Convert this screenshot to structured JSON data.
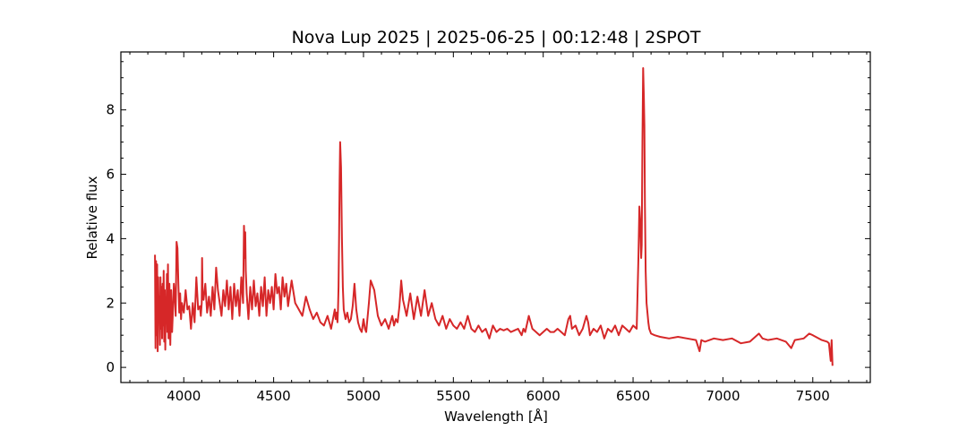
{
  "chart_data": {
    "type": "line",
    "title": "Nova Lup 2025 | 2025-06-25 | 00:12:48 | 2SPOT",
    "xlabel": "Wavelength [Å]",
    "ylabel": "Relative flux",
    "xlim": [
      3650,
      7820
    ],
    "ylim": [
      -0.47,
      9.8
    ],
    "xticks": [
      4000,
      4500,
      5000,
      5500,
      6000,
      6500,
      7000,
      7500
    ],
    "xtick_labels": [
      "4000",
      "4500",
      "5000",
      "5500",
      "6000",
      "6500",
      "7000",
      "7500"
    ],
    "xminor_step": 100,
    "yticks": [
      0,
      2,
      4,
      6,
      8
    ],
    "ytick_labels": [
      "0",
      "2",
      "4",
      "6",
      "8"
    ],
    "yminor_step": 0.5,
    "tick_direction": "in",
    "grid": false,
    "legend": "none",
    "series": [
      {
        "color": "#d62728",
        "x": [
          3840,
          3843,
          3846,
          3849,
          3852,
          3855,
          3858,
          3861,
          3864,
          3867,
          3870,
          3873,
          3876,
          3879,
          3882,
          3885,
          3888,
          3891,
          3894,
          3897,
          3900,
          3903,
          3906,
          3909,
          3912,
          3915,
          3920,
          3925,
          3930,
          3935,
          3940,
          3945,
          3950,
          3955,
          3960,
          3965,
          3970,
          3975,
          3980,
          3985,
          3990,
          4000,
          4010,
          4020,
          4030,
          4040,
          4050,
          4060,
          4070,
          4080,
          4090,
          4095,
          4100,
          4102,
          4105,
          4110,
          4120,
          4130,
          4140,
          4150,
          4160,
          4170,
          4180,
          4190,
          4200,
          4210,
          4220,
          4230,
          4240,
          4250,
          4260,
          4270,
          4280,
          4290,
          4300,
          4310,
          4320,
          4330,
          4335,
          4340,
          4342,
          4345,
          4350,
          4360,
          4370,
          4380,
          4390,
          4400,
          4410,
          4420,
          4430,
          4440,
          4450,
          4460,
          4470,
          4480,
          4490,
          4500,
          4510,
          4520,
          4530,
          4540,
          4550,
          4560,
          4570,
          4580,
          4600,
          4620,
          4640,
          4660,
          4680,
          4700,
          4720,
          4740,
          4760,
          4780,
          4800,
          4820,
          4840,
          4845,
          4850,
          4855,
          4858,
          4861,
          4864,
          4867,
          4870,
          4875,
          4880,
          4885,
          4890,
          4900,
          4910,
          4920,
          4930,
          4940,
          4950,
          4960,
          4970,
          4980,
          4990,
          5000,
          5008,
          5015,
          5020,
          5030,
          5040,
          5060,
          5080,
          5100,
          5120,
          5140,
          5160,
          5170,
          5180,
          5190,
          5200,
          5210,
          5220,
          5240,
          5260,
          5280,
          5300,
          5320,
          5340,
          5360,
          5380,
          5400,
          5420,
          5440,
          5460,
          5480,
          5500,
          5520,
          5540,
          5560,
          5580,
          5600,
          5620,
          5640,
          5660,
          5680,
          5700,
          5720,
          5740,
          5760,
          5780,
          5800,
          5820,
          5840,
          5860,
          5870,
          5880,
          5890,
          5900,
          5920,
          5940,
          5960,
          5980,
          6000,
          6020,
          6040,
          6060,
          6080,
          6100,
          6120,
          6140,
          6150,
          6160,
          6180,
          6200,
          6220,
          6240,
          6250,
          6260,
          6280,
          6300,
          6320,
          6340,
          6360,
          6380,
          6400,
          6420,
          6440,
          6460,
          6480,
          6500,
          6520,
          6530,
          6535,
          6540,
          6545,
          6548,
          6552,
          6556,
          6560,
          6563,
          6566,
          6570,
          6575,
          6580,
          6585,
          6590,
          6600,
          6620,
          6650,
          6700,
          6750,
          6800,
          6850,
          6870,
          6880,
          6900,
          6950,
          7000,
          7050,
          7100,
          7150,
          7200,
          7220,
          7250,
          7300,
          7350,
          7380,
          7400,
          7450,
          7480,
          7500,
          7550,
          7580,
          7590,
          7600,
          7605,
          7610
        ],
        "y": [
          3.5,
          0.6,
          3.3,
          1.0,
          3.2,
          0.5,
          2.8,
          1.4,
          2.2,
          0.7,
          2.8,
          1.2,
          2.5,
          0.9,
          2.6,
          1.3,
          3.0,
          0.8,
          2.4,
          0.55,
          2.1,
          1.6,
          2.9,
          1.1,
          3.2,
          0.9,
          2.6,
          0.7,
          2.4,
          1.1,
          1.8,
          2.6,
          2.2,
          1.6,
          3.9,
          3.7,
          2.6,
          1.7,
          2.3,
          1.5,
          2.0,
          1.7,
          2.4,
          1.8,
          1.9,
          1.2,
          2.0,
          1.4,
          2.8,
          1.8,
          1.9,
          1.6,
          2.0,
          3.4,
          2.3,
          2.1,
          2.6,
          1.7,
          2.2,
          1.6,
          2.5,
          1.8,
          3.1,
          2.4,
          2.0,
          1.6,
          2.4,
          1.9,
          2.7,
          1.8,
          2.5,
          1.5,
          2.6,
          1.9,
          2.4,
          1.6,
          2.8,
          2.0,
          4.4,
          3.4,
          4.2,
          3.0,
          2.3,
          1.5,
          2.5,
          1.8,
          2.7,
          1.9,
          2.3,
          1.6,
          2.5,
          1.9,
          2.8,
          1.6,
          2.4,
          2.0,
          2.5,
          1.8,
          2.9,
          2.3,
          2.5,
          1.8,
          2.8,
          2.2,
          2.6,
          1.9,
          2.7,
          2.0,
          1.8,
          1.6,
          2.2,
          1.8,
          1.5,
          1.7,
          1.4,
          1.3,
          1.6,
          1.2,
          1.8,
          1.5,
          1.7,
          1.4,
          1.8,
          2.5,
          4.0,
          5.8,
          7.0,
          6.2,
          4.0,
          2.5,
          1.8,
          1.5,
          1.7,
          1.4,
          1.5,
          1.9,
          2.6,
          1.8,
          1.4,
          1.2,
          1.1,
          1.5,
          1.2,
          1.1,
          1.4,
          2.0,
          2.7,
          2.4,
          1.6,
          1.3,
          1.5,
          1.2,
          1.6,
          1.3,
          1.5,
          1.4,
          1.9,
          2.7,
          2.1,
          1.6,
          2.3,
          1.5,
          2.2,
          1.6,
          2.4,
          1.6,
          2.0,
          1.5,
          1.3,
          1.6,
          1.2,
          1.5,
          1.3,
          1.2,
          1.4,
          1.2,
          1.6,
          1.2,
          1.1,
          1.3,
          1.1,
          1.2,
          0.9,
          1.3,
          1.1,
          1.2,
          1.15,
          1.2,
          1.1,
          1.15,
          1.2,
          1.1,
          1.0,
          1.2,
          1.1,
          1.6,
          1.2,
          1.1,
          1.0,
          1.1,
          1.2,
          1.1,
          1.1,
          1.2,
          1.1,
          1.0,
          1.5,
          1.6,
          1.2,
          1.3,
          1.0,
          1.2,
          1.6,
          1.4,
          1.0,
          1.2,
          1.1,
          1.3,
          0.9,
          1.2,
          1.1,
          1.3,
          1.0,
          1.3,
          1.2,
          1.1,
          1.3,
          1.2,
          3.5,
          5.0,
          4.5,
          3.4,
          3.8,
          7.0,
          9.3,
          8.4,
          7.5,
          5.0,
          3.0,
          2.0,
          1.7,
          1.4,
          1.2,
          1.05,
          1.0,
          0.95,
          0.9,
          0.95,
          0.9,
          0.85,
          0.5,
          0.85,
          0.8,
          0.9,
          0.85,
          0.9,
          0.75,
          0.8,
          1.05,
          0.9,
          0.85,
          0.9,
          0.8,
          0.6,
          0.85,
          0.9,
          1.05,
          1.0,
          0.85,
          0.8,
          0.75,
          0.2,
          0.85,
          0.05
        ]
      }
    ]
  }
}
